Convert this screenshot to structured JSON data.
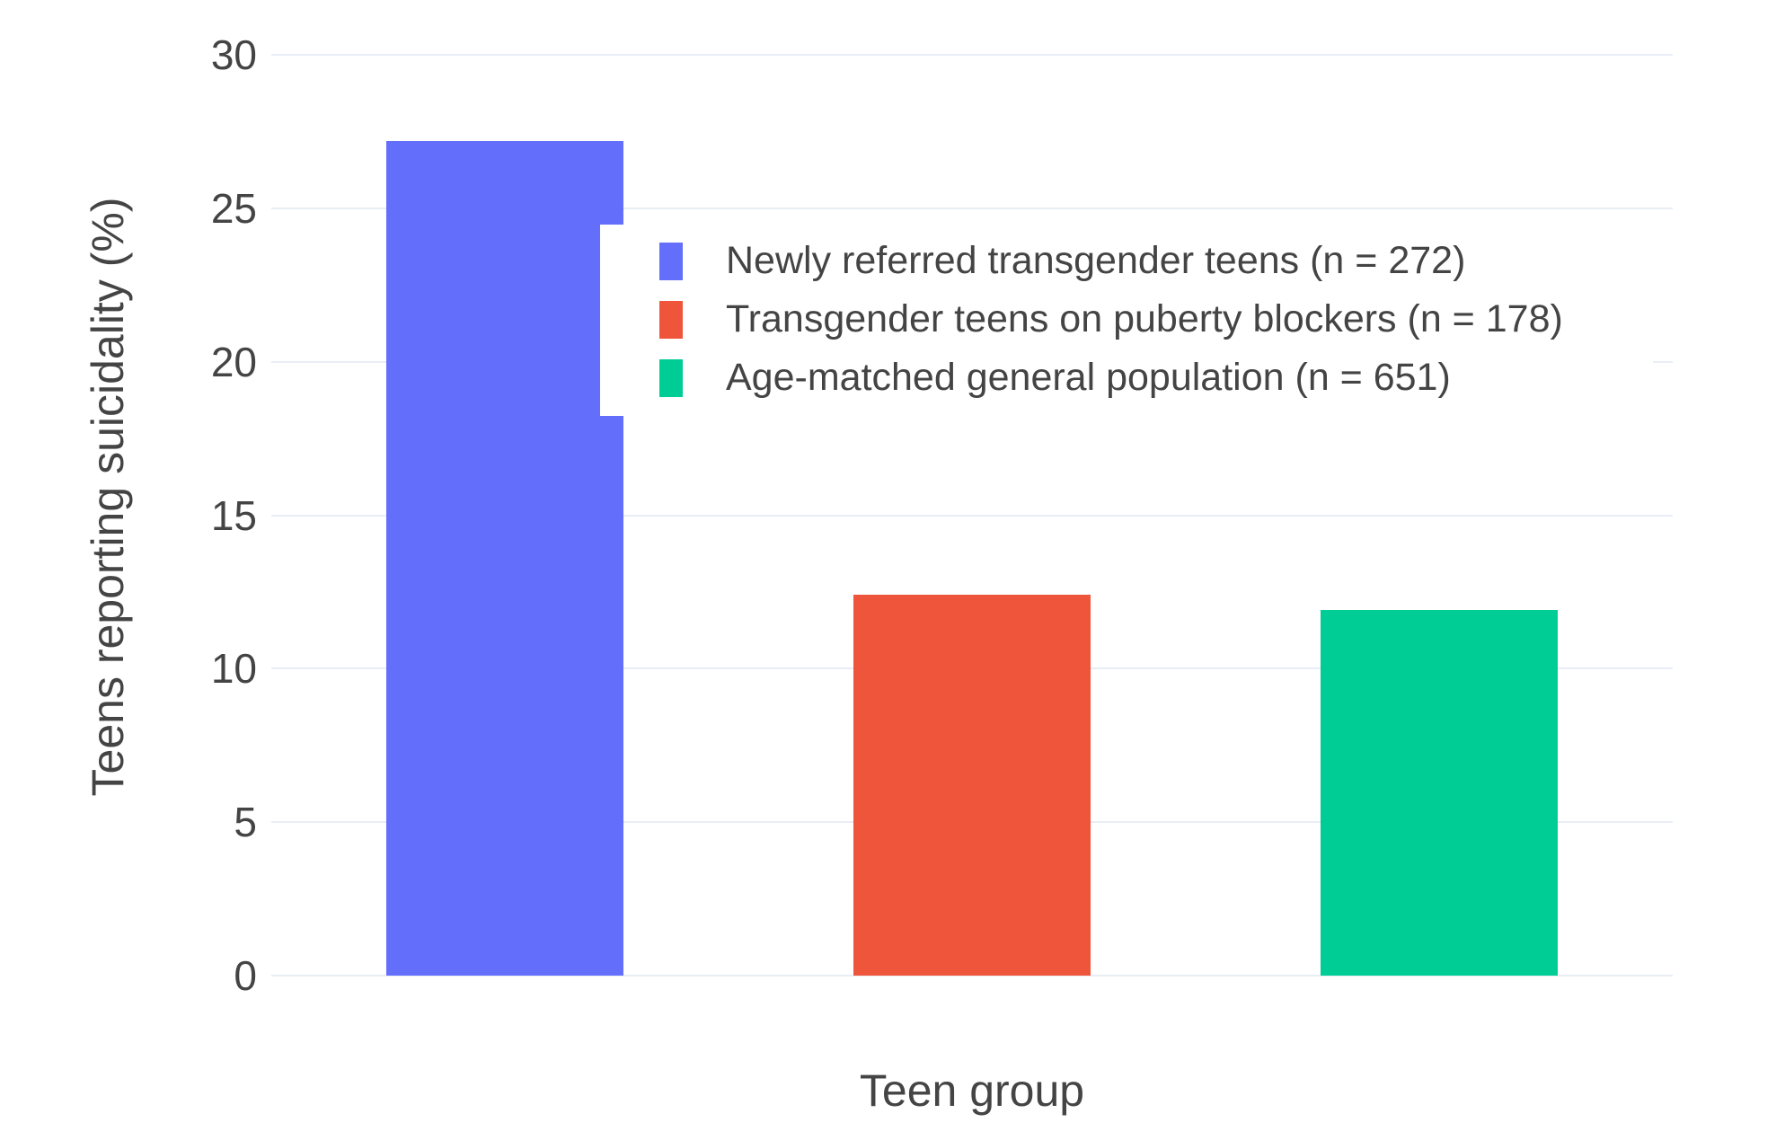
{
  "chart_data": {
    "type": "bar",
    "title": "",
    "xlabel": "Teen group",
    "ylabel": "Teens reporting suicidality (%)",
    "categories": [
      "Newly referred transgender teens (n = 272)",
      "Transgender teens on puberty blockers (n = 178)",
      "Age-matched general population (n = 651)"
    ],
    "values": [
      27.2,
      12.4,
      11.9
    ],
    "colors": [
      "#636EFA",
      "#EF553B",
      "#00CC96"
    ],
    "ylim": [
      0,
      31
    ],
    "yticks": [
      0,
      5,
      10,
      15,
      20,
      25,
      30
    ],
    "grid": true,
    "gridline_color": "#E9EDF5",
    "text_color": "#444444",
    "background_color": "#FFFFFF",
    "legend_position": "inside-top, overlapping plot area",
    "legend_entries": [
      {
        "label": "Newly referred transgender teens (n = 272)",
        "color": "#636EFA"
      },
      {
        "label": "Transgender teens on puberty blockers (n = 178)",
        "color": "#EF553B"
      },
      {
        "label": "Age-matched general population (n = 651)",
        "color": "#00CC96"
      }
    ]
  }
}
